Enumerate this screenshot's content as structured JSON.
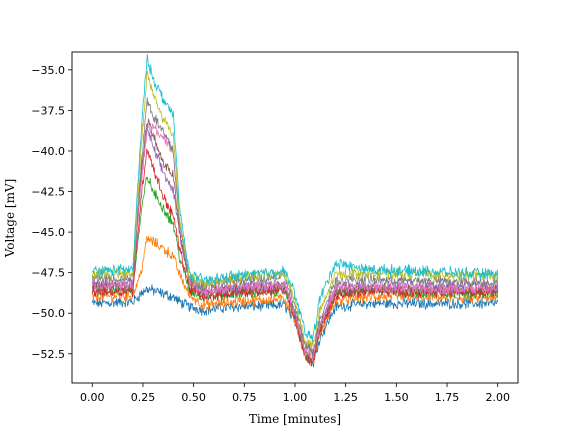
{
  "chart_data": {
    "type": "line",
    "xlabel": "Time [minutes]",
    "ylabel": "Voltage [mV]",
    "xlim": [
      -0.1,
      2.1
    ],
    "ylim": [
      -54.3,
      -33.9
    ],
    "xticks": [
      0.0,
      0.25,
      0.5,
      0.75,
      1.0,
      1.25,
      1.5,
      1.75,
      2.0
    ],
    "xtick_labels": [
      "0.00",
      "0.25",
      "0.50",
      "0.75",
      "1.00",
      "1.25",
      "1.50",
      "1.75",
      "2.00"
    ],
    "yticks": [
      -35.0,
      -37.5,
      -40.0,
      -42.5,
      -45.0,
      -47.5,
      -50.0,
      -52.5
    ],
    "ytick_labels": [
      "−35.0",
      "−37.5",
      "−40.0",
      "−42.5",
      "−45.0",
      "−47.5",
      "−50.0",
      "−52.5"
    ],
    "grid": false,
    "legend": "none",
    "x": [
      0.0,
      0.2,
      0.24,
      0.27,
      0.3,
      0.35,
      0.4,
      0.43,
      0.48,
      0.55,
      0.7,
      0.95,
      1.0,
      1.05,
      1.09,
      1.12,
      1.2,
      1.35,
      1.6,
      2.0
    ],
    "series": [
      {
        "color": "#1f77b4",
        "values": [
          -49.4,
          -49.3,
          -48.8,
          -48.5,
          -48.6,
          -48.8,
          -49.0,
          -49.3,
          -49.6,
          -49.8,
          -49.6,
          -49.5,
          -50.5,
          -52.5,
          -53.1,
          -51.6,
          -49.6,
          -49.4,
          -49.4,
          -49.4
        ]
      },
      {
        "color": "#ff7f0e",
        "values": [
          -49.0,
          -48.9,
          -47.5,
          -45.4,
          -45.6,
          -46.0,
          -46.5,
          -47.6,
          -48.9,
          -49.5,
          -49.3,
          -49.1,
          -50.5,
          -52.6,
          -53.0,
          -51.4,
          -49.2,
          -49.0,
          -49.0,
          -49.1
        ]
      },
      {
        "color": "#2ca02c",
        "values": [
          -48.6,
          -48.5,
          -44.0,
          -41.5,
          -42.5,
          -43.5,
          -44.5,
          -46.5,
          -48.6,
          -49.0,
          -48.8,
          -48.6,
          -50.0,
          -52.6,
          -52.9,
          -51.0,
          -48.8,
          -48.5,
          -48.7,
          -48.8
        ]
      },
      {
        "color": "#d62728",
        "values": [
          -48.7,
          -48.6,
          -43.0,
          -39.8,
          -41.0,
          -42.8,
          -44.0,
          -46.0,
          -48.5,
          -49.0,
          -48.7,
          -48.6,
          -50.3,
          -52.7,
          -53.0,
          -51.2,
          -48.9,
          -48.6,
          -48.7,
          -48.6
        ]
      },
      {
        "color": "#9467bd",
        "values": [
          -48.2,
          -48.1,
          -42.0,
          -38.5,
          -39.8,
          -41.3,
          -42.5,
          -45.0,
          -48.0,
          -48.6,
          -48.4,
          -48.2,
          -50.0,
          -52.0,
          -52.4,
          -50.8,
          -48.5,
          -48.2,
          -48.3,
          -48.3
        ]
      },
      {
        "color": "#8c564b",
        "values": [
          -48.4,
          -48.3,
          -41.5,
          -38.0,
          -39.0,
          -40.8,
          -41.5,
          -45.0,
          -48.2,
          -48.8,
          -48.5,
          -48.4,
          -50.2,
          -52.5,
          -52.8,
          -51.0,
          -48.6,
          -48.5,
          -48.6,
          -48.6
        ]
      },
      {
        "color": "#e377c2",
        "values": [
          -48.3,
          -48.2,
          -42.0,
          -38.8,
          -38.5,
          -39.2,
          -40.0,
          -44.5,
          -48.0,
          -48.7,
          -48.4,
          -48.3,
          -50.0,
          -52.3,
          -52.6,
          -50.8,
          -48.5,
          -48.4,
          -48.5,
          -48.5
        ]
      },
      {
        "color": "#7f7f7f",
        "values": [
          -47.9,
          -47.8,
          -41.0,
          -36.8,
          -37.8,
          -38.8,
          -40.0,
          -44.5,
          -48.0,
          -48.3,
          -48.0,
          -47.8,
          -49.6,
          -52.0,
          -52.3,
          -50.4,
          -48.0,
          -47.9,
          -48.0,
          -48.1
        ]
      },
      {
        "color": "#bcbd22",
        "values": [
          -47.6,
          -47.5,
          -40.0,
          -35.2,
          -36.5,
          -38.0,
          -39.0,
          -44.0,
          -47.8,
          -48.2,
          -47.8,
          -47.5,
          -49.2,
          -51.7,
          -52.0,
          -50.0,
          -47.6,
          -47.5,
          -47.6,
          -47.7
        ]
      },
      {
        "color": "#17becf",
        "values": [
          -47.4,
          -47.3,
          -39.0,
          -34.3,
          -35.5,
          -36.8,
          -37.8,
          -43.5,
          -47.6,
          -48.0,
          -47.7,
          -47.4,
          -48.8,
          -51.2,
          -51.5,
          -49.2,
          -46.9,
          -47.3,
          -47.4,
          -47.6
        ]
      }
    ]
  }
}
